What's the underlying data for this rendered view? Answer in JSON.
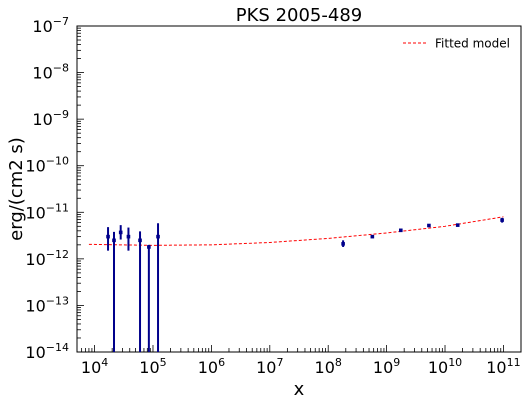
{
  "chart_data": {
    "type": "scatter",
    "title": "PKS 2005-489",
    "xlabel": "x",
    "ylabel": "erg/(cm2 s)",
    "x_scale": "log",
    "y_scale": "log",
    "xlim": [
      5000,
      200000000000
    ],
    "ylim": [
      1e-14,
      1e-07
    ],
    "grid": false,
    "legend_position": "top-right",
    "x_ticks": [
      {
        "value": 10000,
        "label": "10^4"
      },
      {
        "value": 100000,
        "label": "10^5"
      },
      {
        "value": 1000000,
        "label": "10^6"
      },
      {
        "value": 10000000,
        "label": "10^7"
      },
      {
        "value": 100000000,
        "label": "10^8"
      },
      {
        "value": 1000000000,
        "label": "10^9"
      },
      {
        "value": 10000000000,
        "label": "10^10"
      },
      {
        "value": 100000000000,
        "label": "10^11"
      }
    ],
    "y_ticks": [
      {
        "value": 1e-14,
        "label": "10^-14"
      },
      {
        "value": 1e-13,
        "label": "10^-13"
      },
      {
        "value": 1e-12,
        "label": "10^-12"
      },
      {
        "value": 1e-11,
        "label": "10^-11"
      },
      {
        "value": 1e-10,
        "label": "10^-10"
      },
      {
        "value": 1e-09,
        "label": "10^-9"
      },
      {
        "value": 1e-08,
        "label": "10^-8"
      },
      {
        "value": 1e-07,
        "label": "10^-7"
      }
    ],
    "series": [
      {
        "kind": "errorbar",
        "color": "#00008b",
        "points": [
          {
            "x": 17000,
            "y": 3e-12,
            "ylo": 1.5e-12,
            "yhi": 4.8e-12
          },
          {
            "x": 21500,
            "y": 2.5e-12,
            "ylo": 1e-14,
            "yhi": 3.8e-12
          },
          {
            "x": 28000,
            "y": 3.7e-12,
            "ylo": 2.6e-12,
            "yhi": 5.3e-12
          },
          {
            "x": 38000,
            "y": 3e-12,
            "ylo": 1.5e-12,
            "yhi": 4.7e-12
          },
          {
            "x": 60000,
            "y": 2.5e-12,
            "ylo": 1e-14,
            "yhi": 3.9e-12
          },
          {
            "x": 85000,
            "y": 1.8e-12,
            "ylo": 1e-14,
            "yhi": 2e-12
          },
          {
            "x": 122000,
            "y": 3e-12,
            "ylo": 1e-14,
            "yhi": 5.8e-12
          },
          {
            "x": 180000000,
            "y": 2.1e-12,
            "ylo": 1.8e-12,
            "yhi": 2.5e-12
          },
          {
            "x": 570000000,
            "y": 3e-12,
            "ylo": 2.8e-12,
            "yhi": 3.2e-12
          },
          {
            "x": 1750000000,
            "y": 4.1e-12,
            "ylo": 3.9e-12,
            "yhi": 4.3e-12
          },
          {
            "x": 5300000000,
            "y": 5.2e-12,
            "ylo": 4.9e-12,
            "yhi": 5.5e-12
          },
          {
            "x": 16500000000,
            "y": 5.3e-12,
            "ylo": 5e-12,
            "yhi": 5.6e-12
          },
          {
            "x": 95000000000,
            "y": 6.8e-12,
            "ylo": 6e-12,
            "yhi": 7.6e-12
          }
        ]
      },
      {
        "name": "Fitted model",
        "kind": "line",
        "style": "dashed",
        "color": "#ff0000",
        "x": [
          8000,
          100000,
          1000000,
          10000000,
          100000000,
          1000000000,
          10000000000,
          100000000000
        ],
        "y": [
          2.05e-12,
          1.95e-12,
          2e-12,
          2.25e-12,
          2.75e-12,
          3.6e-12,
          5e-12,
          8e-12
        ]
      }
    ]
  }
}
